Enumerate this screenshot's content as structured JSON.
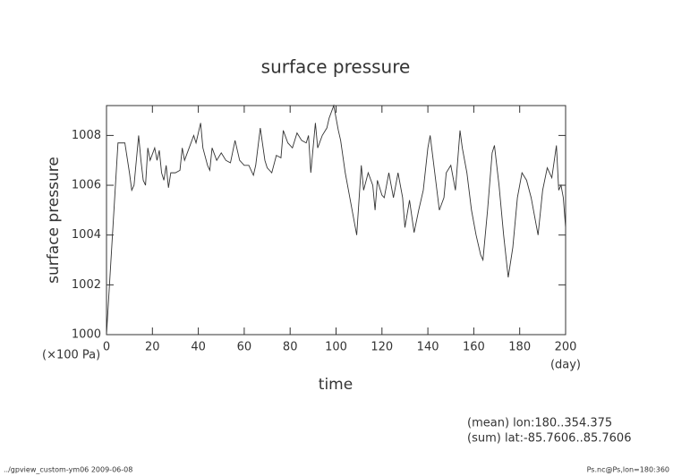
{
  "chart_data": {
    "type": "line",
    "title": "surface pressure",
    "y_label": "surface pressure",
    "x_label": "time",
    "y_unit": "(×100 Pa)",
    "x_unit": "(day)",
    "annotations": [
      "(mean) lon:180..354.375",
      "(sum) lat:-85.7606..85.7606"
    ],
    "footer_left": "../gpview_custom-ym06  2009-06-08",
    "footer_right": "Ps.nc@Ps,lon=180:360",
    "color": "#333333",
    "x": [
      0,
      5,
      8,
      10,
      11,
      12,
      14,
      15,
      16,
      17,
      18,
      19,
      21,
      22,
      23,
      24,
      25,
      26,
      27,
      28,
      30,
      32,
      33,
      34,
      36,
      38,
      39,
      41,
      42,
      44,
      45,
      46,
      48,
      50,
      52,
      54,
      56,
      58,
      60,
      62,
      64,
      65,
      67,
      69,
      70,
      72,
      74,
      76,
      77,
      79,
      81,
      83,
      85,
      87,
      88,
      89,
      91,
      92,
      94,
      96,
      97,
      99,
      101,
      102,
      104,
      106,
      108,
      109,
      111,
      112,
      114,
      116,
      117,
      118,
      120,
      121,
      123,
      125,
      127,
      129,
      130,
      132,
      134,
      136,
      138,
      140,
      141,
      143,
      145,
      147,
      148,
      150,
      152,
      154,
      155,
      157,
      159,
      161,
      163,
      164,
      166,
      168,
      169,
      171,
      173,
      175,
      177,
      179,
      181,
      183,
      185,
      187,
      188,
      190,
      192,
      194,
      196,
      197,
      198,
      199,
      200
    ],
    "values": [
      1000.0,
      1007.7,
      1007.7,
      1006.5,
      1005.8,
      1006.0,
      1008.0,
      1007.0,
      1006.2,
      1006.0,
      1007.5,
      1007.0,
      1007.5,
      1007.0,
      1007.4,
      1006.5,
      1006.2,
      1006.8,
      1005.9,
      1006.5,
      1006.5,
      1006.6,
      1007.5,
      1007.0,
      1007.5,
      1008.0,
      1007.7,
      1008.5,
      1007.5,
      1006.8,
      1006.6,
      1007.5,
      1007.0,
      1007.3,
      1007.0,
      1006.9,
      1007.8,
      1007.0,
      1006.8,
      1006.8,
      1006.4,
      1006.8,
      1008.3,
      1007.0,
      1006.7,
      1006.5,
      1007.2,
      1007.1,
      1008.2,
      1007.7,
      1007.5,
      1008.1,
      1007.8,
      1007.7,
      1008.0,
      1006.5,
      1008.5,
      1007.5,
      1008.0,
      1008.3,
      1008.7,
      1009.2,
      1008.2,
      1007.8,
      1006.5,
      1005.5,
      1004.5,
      1004.0,
      1006.8,
      1005.8,
      1006.5,
      1006.0,
      1005.0,
      1006.2,
      1005.6,
      1005.5,
      1006.5,
      1005.5,
      1006.5,
      1005.5,
      1004.3,
      1005.4,
      1004.1,
      1005.0,
      1005.8,
      1007.5,
      1008.0,
      1006.5,
      1005.0,
      1005.5,
      1006.5,
      1006.8,
      1005.8,
      1008.2,
      1007.5,
      1006.5,
      1005.0,
      1004.0,
      1003.2,
      1003.0,
      1005.0,
      1007.3,
      1007.6,
      1006.0,
      1004.0,
      1002.3,
      1003.5,
      1005.5,
      1006.5,
      1006.2,
      1005.5,
      1004.5,
      1004.0,
      1005.8,
      1006.7,
      1006.3,
      1007.6,
      1005.8,
      1006.0,
      1005.5,
      1004.3
    ],
    "xlim": [
      0,
      200
    ],
    "xticks": [
      0,
      20,
      40,
      60,
      80,
      100,
      120,
      140,
      160,
      180,
      200
    ],
    "ylim": [
      1000,
      1009.2
    ],
    "yticks": [
      1000,
      1002,
      1004,
      1006,
      1008
    ]
  }
}
